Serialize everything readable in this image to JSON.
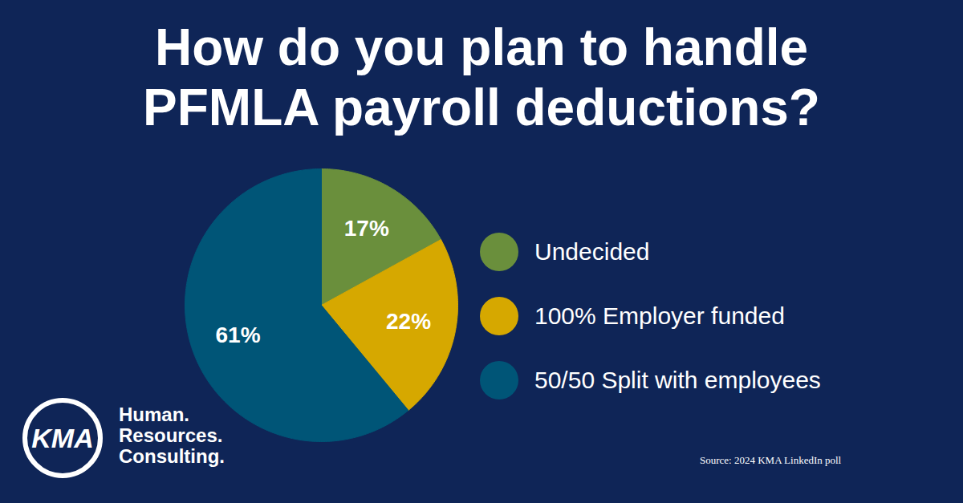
{
  "chart_data": {
    "type": "pie",
    "title": "How do you plan to handle PFMLA payroll deductions?",
    "categories": [
      "Undecided",
      "100% Employer funded",
      "50/50 Split with employees"
    ],
    "values": [
      17,
      22,
      61
    ],
    "value_labels": [
      "17%",
      "22%",
      "61%"
    ],
    "colors": [
      "#6a8f3c",
      "#d6a800",
      "#005577"
    ],
    "data_labels": true,
    "legend": "right",
    "logo": "KMA",
    "tagline": [
      "Human.",
      "Resources.",
      "Consulting."
    ],
    "source": "Source: 2024 KMA LinkedIn poll"
  }
}
